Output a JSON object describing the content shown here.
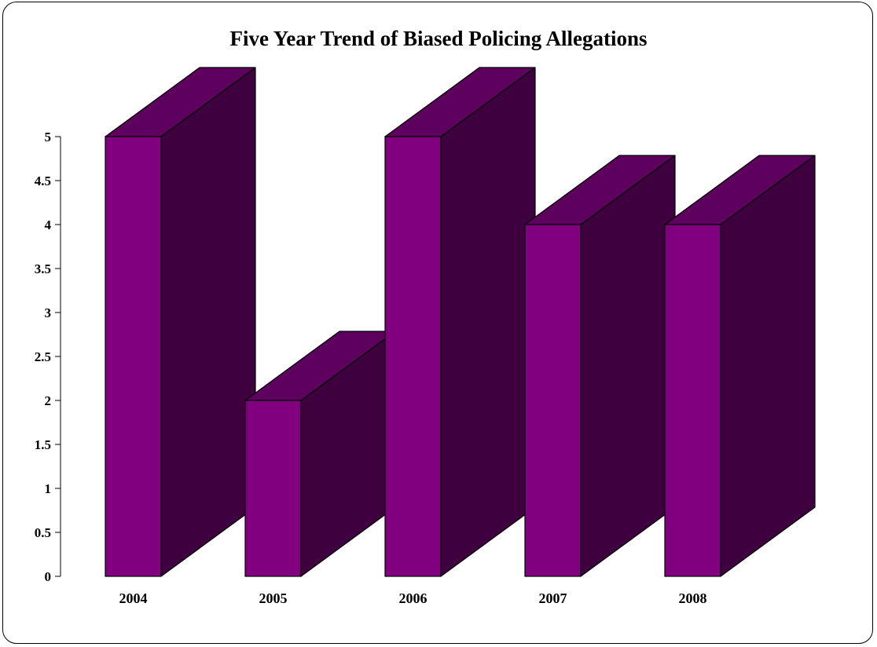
{
  "chart_data": {
    "type": "bar",
    "title": "Five Year Trend of Biased Policing Allegations",
    "categories": [
      "2004",
      "2005",
      "2006",
      "2007",
      "2008"
    ],
    "values": [
      5,
      2,
      5,
      4,
      4
    ],
    "ylim": [
      0,
      5
    ],
    "yticks": [
      "0",
      "0.5",
      "1",
      "1.5",
      "2",
      "2.5",
      "3",
      "3.5",
      "4",
      "4.5",
      "5"
    ],
    "xlabel": "",
    "ylabel": "",
    "grid": false,
    "legend": "none",
    "style": "3d-column",
    "colors": {
      "front": "#800080",
      "top": "#5e005e",
      "side": "#3f003f",
      "outline": "#000000"
    }
  }
}
